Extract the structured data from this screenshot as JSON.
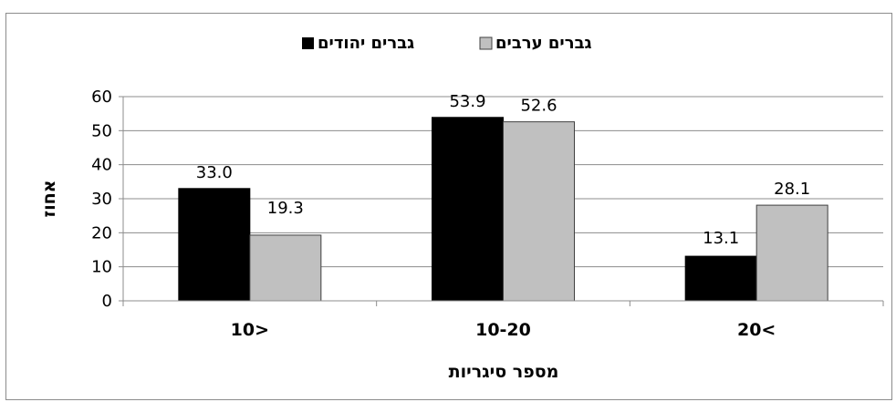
{
  "chart_data": {
    "type": "bar",
    "categories": [
      "10>",
      "10-20",
      "20<"
    ],
    "series": [
      {
        "name": "גברים יהודים",
        "values": [
          33.0,
          53.9,
          13.1
        ],
        "labels": [
          "33.0",
          "53.9",
          "13.1"
        ],
        "color": "#000000"
      },
      {
        "name": "גברים ערבים",
        "values": [
          19.3,
          52.6,
          28.1
        ],
        "labels": [
          "19.3",
          "52.6",
          "28.1"
        ],
        "color": "#c0c0c0"
      }
    ],
    "xlabel": "מספר סיגריות",
    "ylabel": "אחוז",
    "ylim": [
      0,
      60
    ],
    "yticks": [
      "0",
      "10",
      "20",
      "30",
      "40",
      "50",
      "60"
    ],
    "grid": true,
    "legend_position": "top"
  }
}
